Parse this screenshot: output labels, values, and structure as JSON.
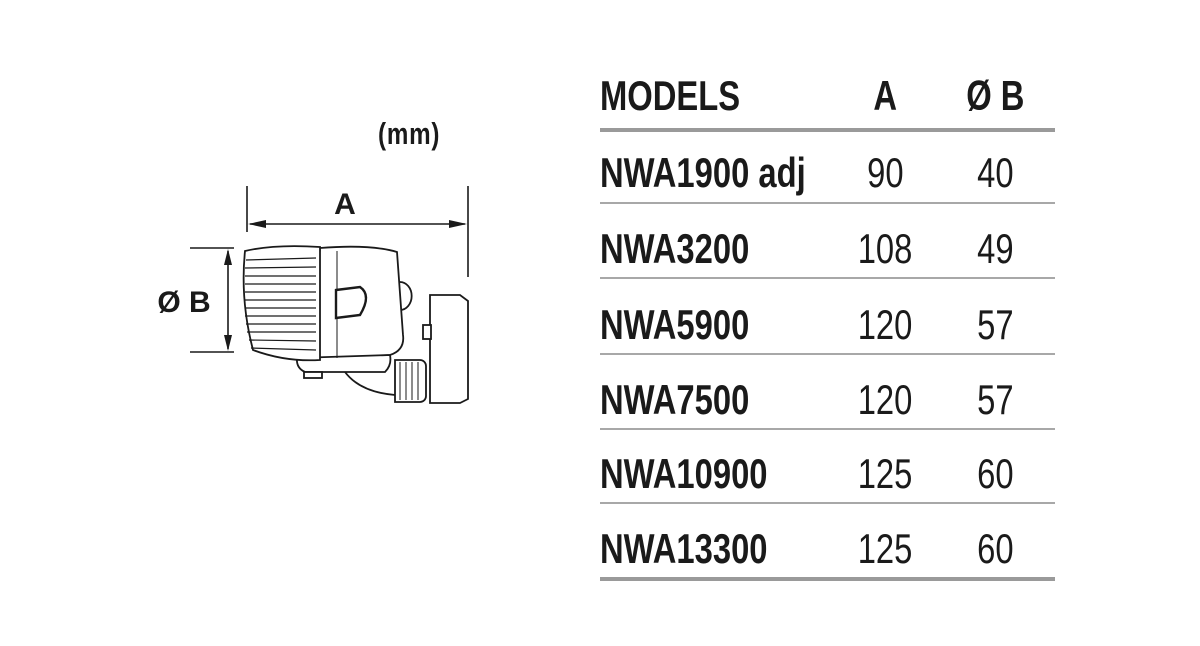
{
  "diagram": {
    "unit_label": "(mm)",
    "dimension_a_label": "A",
    "dimension_b_label": "Ø B"
  },
  "table": {
    "headers": {
      "model": "MODELS",
      "a": "A",
      "b": "Ø B"
    },
    "rows": [
      {
        "model": "NWA1900 adj",
        "a": "90",
        "b": "40"
      },
      {
        "model": "NWA3200",
        "a": "108",
        "b": "49"
      },
      {
        "model": "NWA5900",
        "a": "120",
        "b": "57"
      },
      {
        "model": "NWA7500",
        "a": "120",
        "b": "57"
      },
      {
        "model": "NWA10900",
        "a": "125",
        "b": "60"
      },
      {
        "model": "NWA13300",
        "a": "125",
        "b": "60"
      }
    ]
  }
}
